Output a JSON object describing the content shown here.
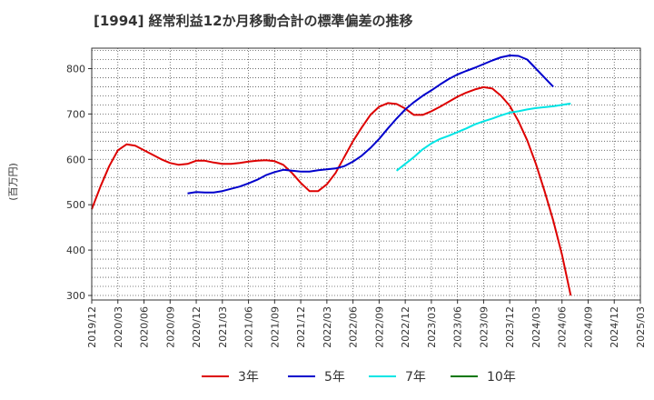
{
  "chart_data": {
    "type": "line",
    "title": "[1994]  経常利益12か月移動合計の標準偏差の推移",
    "ylabel": "(百万円)",
    "xlabel": "",
    "ylim": [
      290,
      845
    ],
    "yticks": [
      300,
      400,
      500,
      600,
      700,
      800
    ],
    "x_ticks": [
      "2019/12",
      "2020/03",
      "2020/06",
      "2020/09",
      "2020/12",
      "2021/03",
      "2021/06",
      "2021/09",
      "2021/12",
      "2022/03",
      "2022/06",
      "2022/09",
      "2022/12",
      "2023/03",
      "2023/06",
      "2023/09",
      "2023/12",
      "2024/03",
      "2024/06",
      "2024/09",
      "2024/12",
      "2025/03"
    ],
    "grid": true,
    "legend_position": "bottom",
    "series": [
      {
        "name": "3年",
        "color": "#dd0000",
        "start": "2019/12",
        "values": [
          490,
          540,
          585,
          620,
          633,
          630,
          620,
          610,
          600,
          592,
          588,
          590,
          597,
          597,
          593,
          590,
          590,
          592,
          595,
          597,
          598,
          596,
          588,
          570,
          548,
          530,
          530,
          545,
          570,
          605,
          640,
          670,
          698,
          716,
          724,
          722,
          712,
          698,
          698,
          706,
          716,
          727,
          738,
          747,
          754,
          759,
          756,
          740,
          718,
          684,
          642,
          590,
          530,
          465,
          390,
          300
        ]
      },
      {
        "name": "5年",
        "color": "#0000cc",
        "start": "2020/11",
        "values": [
          525,
          528,
          527,
          527,
          530,
          535,
          540,
          547,
          555,
          565,
          572,
          577,
          575,
          573,
          573,
          576,
          578,
          580,
          585,
          595,
          608,
          625,
          645,
          668,
          690,
          710,
          726,
          740,
          752,
          765,
          777,
          787,
          795,
          802,
          810,
          818,
          825,
          829,
          828,
          820,
          800,
          780,
          760
        ]
      },
      {
        "name": "7年",
        "color": "#00e5e5",
        "start": "2022/11",
        "values": [
          575,
          590,
          605,
          622,
          635,
          645,
          652,
          660,
          668,
          677,
          684,
          690,
          697,
          703,
          706,
          710,
          713,
          715,
          717,
          720,
          723
        ]
      },
      {
        "name": "10年",
        "color": "#007700",
        "start": "2025/03",
        "values": []
      }
    ]
  }
}
